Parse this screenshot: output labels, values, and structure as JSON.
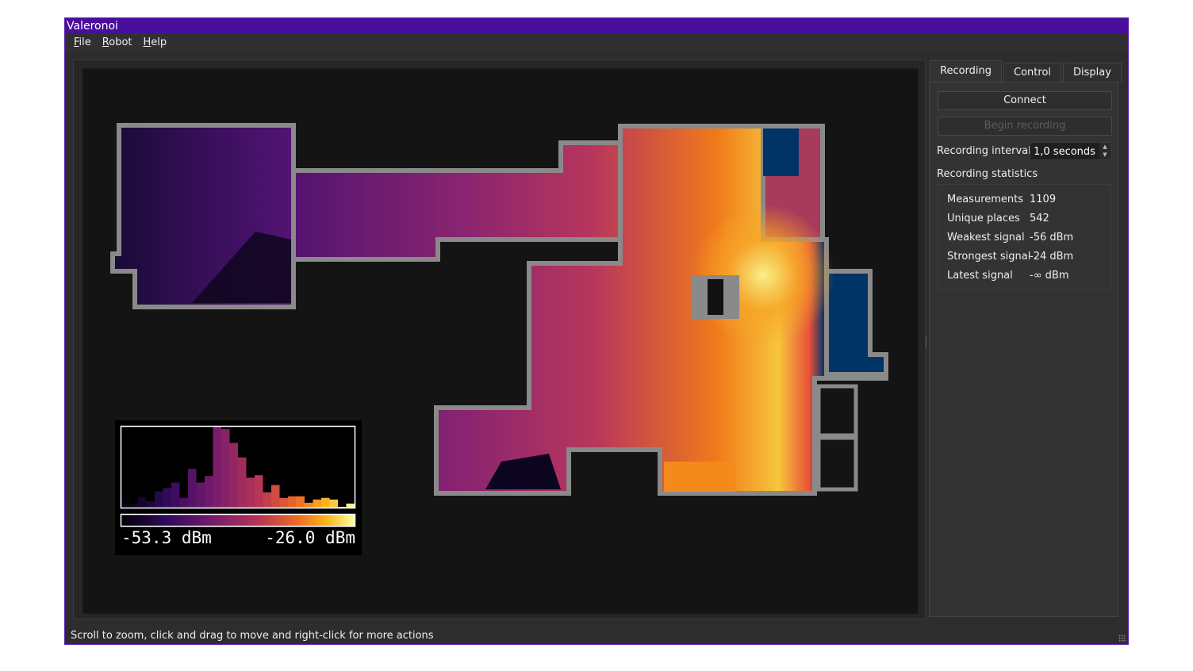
{
  "window": {
    "title": "Valeronoi",
    "accent": "#4a0e9c"
  },
  "menu": [
    {
      "label": "File",
      "mnemonic": "F",
      "rest": "ile"
    },
    {
      "label": "Robot",
      "mnemonic": "R",
      "rest": "obot"
    },
    {
      "label": "Help",
      "mnemonic": "H",
      "rest": "elp"
    }
  ],
  "legend": {
    "min_label": "-53.3 dBm",
    "max_label": "-26.0 dBm",
    "colormap": "inferno",
    "histogram_relative_heights": [
      15,
      5,
      13,
      8,
      20,
      24,
      31,
      12,
      48,
      31,
      39,
      100,
      97,
      80,
      62,
      37,
      40,
      19,
      28,
      12,
      14,
      14,
      6,
      10,
      12,
      10,
      1,
      5
    ]
  },
  "tabs": [
    {
      "label": "Recording",
      "active": true
    },
    {
      "label": "Control"
    },
    {
      "label": "Display"
    }
  ],
  "recording": {
    "connect_label": "Connect",
    "begin_label": "Begin recording",
    "interval_label": "Recording interval",
    "interval_value": "1,0 seconds",
    "stats_title": "Recording statistics",
    "stats": [
      {
        "key": "Measurements",
        "value": "1109"
      },
      {
        "key": "Unique places",
        "value": "542"
      },
      {
        "key": "Weakest signal",
        "value": "-56 dBm"
      },
      {
        "key": "Strongest signal",
        "value": "-24 dBm"
      },
      {
        "key": "Latest signal",
        "value": "-∞ dBm"
      }
    ]
  },
  "status_bar": "Scroll to zoom, click and drag to move and right-click for more actions"
}
